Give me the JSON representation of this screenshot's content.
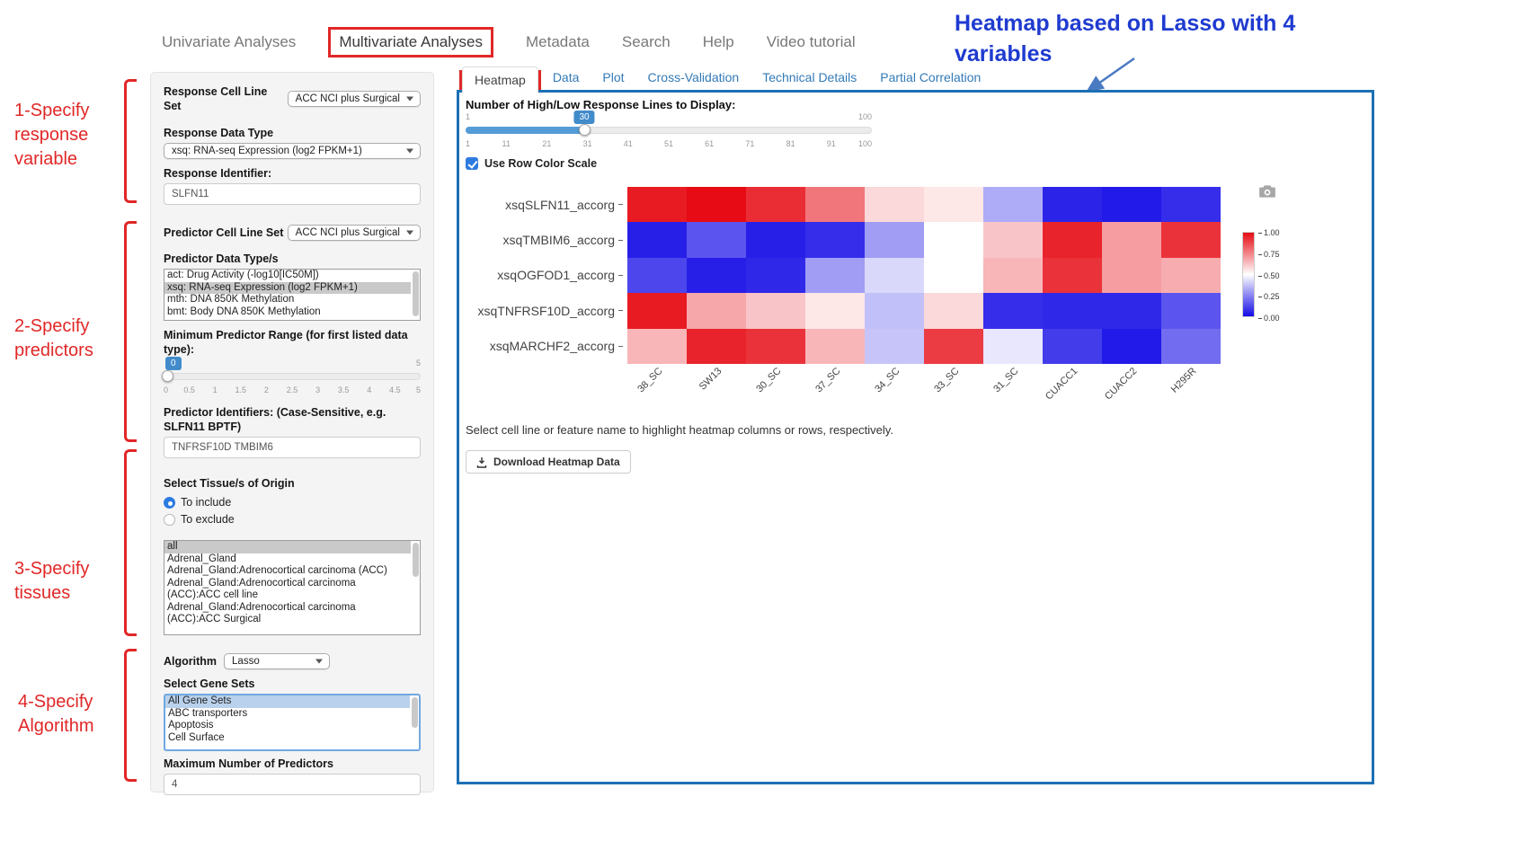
{
  "annotations": {
    "heatmap_note": "Heatmap based on Lasso with 4 variables",
    "step1": "1-Specify response variable",
    "step2": "2-Specify predictors",
    "step3": "3-Specify tissues",
    "step4": "4-Specify Algorithm",
    "accent_red": "#e12727",
    "accent_blue": "#1f3bd0"
  },
  "nav": {
    "items": [
      {
        "label": "Univariate Analyses",
        "active": false
      },
      {
        "label": "Multivariate Analyses",
        "active": true
      },
      {
        "label": "Metadata",
        "active": false
      },
      {
        "label": "Search",
        "active": false
      },
      {
        "label": "Help",
        "active": false
      },
      {
        "label": "Video tutorial",
        "active": false
      }
    ]
  },
  "tabs": [
    {
      "label": "Heatmap",
      "active": true
    },
    {
      "label": "Data",
      "active": false
    },
    {
      "label": "Plot",
      "active": false
    },
    {
      "label": "Cross-Validation",
      "active": false
    },
    {
      "label": "Technical Details",
      "active": false
    },
    {
      "label": "Partial Correlation",
      "active": false
    }
  ],
  "form": {
    "response_cell_line_set_label": "Response Cell Line Set",
    "response_cell_line_set_value": "ACC NCI plus Surgical",
    "response_data_type_label": "Response Data Type",
    "response_data_type_value": "xsq: RNA-seq Expression (log2 FPKM+1)",
    "response_identifier_label": "Response Identifier:",
    "response_identifier_value": "SLFN11",
    "predictor_cell_line_set_label": "Predictor Cell Line Set",
    "predictor_cell_line_set_value": "ACC NCI plus Surgical",
    "predictor_data_types_label": "Predictor Data Type/s",
    "predictor_data_types_options": [
      "act: Drug Activity (-log10[IC50M])",
      "xsq: RNA-seq Expression (log2 FPKM+1)",
      "mth: DNA 850K Methylation",
      "bmt: Body DNA 850K Methylation"
    ],
    "predictor_data_types_selected": 1,
    "min_range_label": "Minimum Predictor Range (for first listed data type):",
    "min_range_value": "0",
    "min_range_max": "5",
    "min_range_ticks": [
      "0",
      "0.5",
      "1",
      "1.5",
      "2",
      "2.5",
      "3",
      "3.5",
      "4",
      "4.5",
      "5"
    ],
    "predictor_identifiers_label": "Predictor Identifiers: (Case-Sensitive, e.g. SLFN11 BPTF)",
    "predictor_identifiers_value": "TNFRSF10D TMBIM6",
    "tissue_label": "Select Tissue/s of Origin",
    "tissue_include_label": "To include",
    "tissue_exclude_label": "To exclude",
    "tissue_options": [
      "all",
      "Adrenal_Gland",
      "Adrenal_Gland:Adrenocortical carcinoma (ACC)",
      "Adrenal_Gland:Adrenocortical carcinoma (ACC):ACC cell line",
      "Adrenal_Gland:Adrenocortical carcinoma (ACC):ACC Surgical"
    ],
    "tissue_selected": 0,
    "algorithm_label": "Algorithm",
    "algorithm_value": "Lasso",
    "gene_sets_label": "Select Gene Sets",
    "gene_sets_options": [
      "All Gene Sets",
      "ABC transporters",
      "Apoptosis",
      "Cell Surface"
    ],
    "gene_sets_selected": 0,
    "max_predictors_label": "Maximum Number of Predictors",
    "max_predictors_value": "4"
  },
  "main": {
    "slider_label": "Number of High/Low Response Lines to Display:",
    "slider_value": "30",
    "slider_min": "1",
    "slider_max": "100",
    "slider_ticks": [
      "1",
      "11",
      "21",
      "31",
      "41",
      "51",
      "61",
      "71",
      "81",
      "91",
      "100"
    ],
    "row_color_scale_label": "Use Row Color Scale",
    "hint": "Select cell line or feature name to highlight heatmap columns or rows, respectively.",
    "download_label": "Download Heatmap Data"
  },
  "chart_data": {
    "type": "heatmap",
    "title": "",
    "rows": [
      "xsqSLFN11_accorg",
      "xsqTMBIM6_accorg",
      "xsqOGFOD1_accorg",
      "xsqTNFRSF10D_accorg",
      "xsqMARCHF2_accorg"
    ],
    "columns": [
      "38_SC",
      "SW13",
      "30_SC",
      "37_SC",
      "34_SC",
      "33_SC",
      "31_SC",
      "CUACC1",
      "CUACC2",
      "H295R"
    ],
    "values": [
      [
        0.97,
        1.0,
        0.93,
        0.78,
        0.58,
        0.55,
        0.33,
        0.05,
        0.03,
        0.07
      ],
      [
        0.04,
        0.15,
        0.04,
        0.07,
        0.3,
        0.5,
        0.62,
        0.95,
        0.7,
        0.92
      ],
      [
        0.12,
        0.04,
        0.06,
        0.3,
        0.42,
        0.5,
        0.65,
        0.92,
        0.7,
        0.67
      ],
      [
        0.97,
        0.68,
        0.62,
        0.55,
        0.37,
        0.58,
        0.07,
        0.06,
        0.06,
        0.15
      ],
      [
        0.65,
        0.95,
        0.92,
        0.65,
        0.38,
        0.9,
        0.45,
        0.1,
        0.03,
        0.2
      ]
    ],
    "value_range": [
      0,
      1
    ],
    "colorbar": {
      "ticks": [
        "1.00",
        "0.75",
        "0.50",
        "0.25",
        "0.00"
      ],
      "high_color": "#e60b14",
      "mid_color": "#ffffff",
      "low_color": "#140be6"
    },
    "legend_position": "right",
    "grid": false
  }
}
